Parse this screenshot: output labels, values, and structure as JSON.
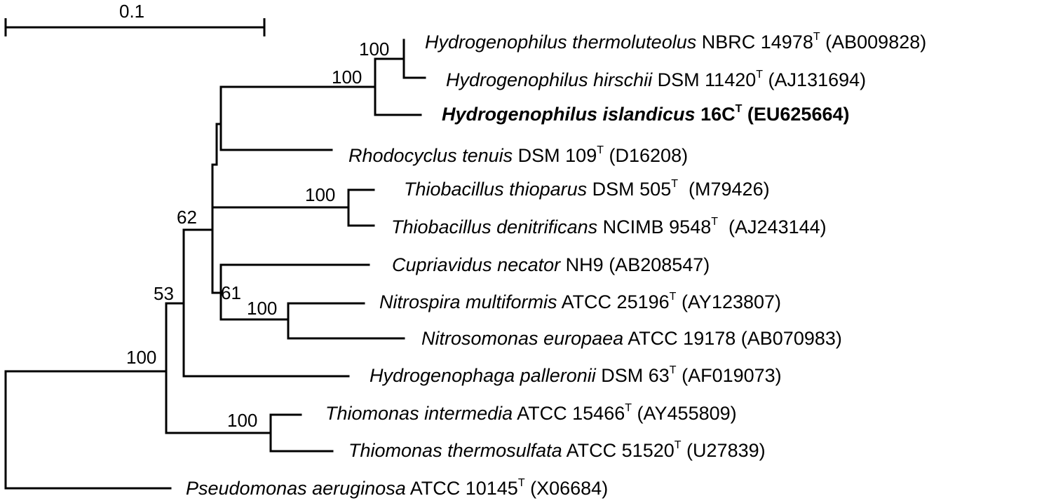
{
  "scale_bar": {
    "label": "0.1"
  },
  "taxa": [
    {
      "name": "Hydrogenophilus thermoluteolus",
      "strain": "NBRC 14978",
      "type_strain": true,
      "accession": "(AB009828)",
      "bold": false
    },
    {
      "name": "Hydrogenophilus hirschii",
      "strain": "DSM 11420",
      "type_strain": true,
      "accession": "(AJ131694)",
      "bold": false
    },
    {
      "name": "Hydrogenophilus islandicus",
      "strain": "16C",
      "type_strain": true,
      "accession": "(EU625664)",
      "bold": true
    },
    {
      "name": "Rhodocyclus tenuis",
      "strain": "DSM 109",
      "type_strain": true,
      "accession": "(D16208)",
      "bold": false
    },
    {
      "name": "Thiobacillus thioparus",
      "strain": "DSM 505",
      "type_strain": true,
      "accession": "(M79426)",
      "bold": false
    },
    {
      "name": "Thiobacillus denitrificans",
      "strain": "NCIMB 9548",
      "type_strain": true,
      "accession": "(AJ243144)",
      "bold": false
    },
    {
      "name": "Cupriavidus necator",
      "strain": "NH9",
      "type_strain": false,
      "accession": "(AB208547)",
      "bold": false
    },
    {
      "name": "Nitrospira multiformis",
      "strain": "ATCC 25196",
      "type_strain": true,
      "accession": "(AY123807)",
      "bold": false
    },
    {
      "name": "Nitrosomonas europaea",
      "strain": "ATCC 19178",
      "type_strain": false,
      "accession": "(AB070983)",
      "bold": false
    },
    {
      "name": "Hydrogenophaga palleronii",
      "strain": "DSM 63",
      "type_strain": true,
      "accession": "(AF019073)",
      "bold": false
    },
    {
      "name": "Thiomonas intermedia",
      "strain": "ATCC 15466",
      "type_strain": true,
      "accession": "(AY455809)",
      "bold": false
    },
    {
      "name": "Thiomonas thermosulfata",
      "strain": "ATCC 51520",
      "type_strain": true,
      "accession": "(U27839)",
      "bold": false
    },
    {
      "name": "Pseudomonas aeruginosa",
      "strain": "ATCC 10145",
      "type_strain": true,
      "accession": "(X06684)",
      "bold": false
    }
  ],
  "type_strain_mark": "T",
  "bootstrap_values": [
    "100",
    "100",
    "100",
    "62",
    "61",
    "100",
    "53",
    "100",
    "100"
  ]
}
